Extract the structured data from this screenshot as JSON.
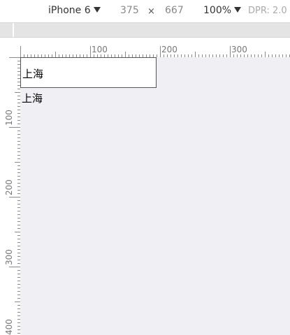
{
  "toolbar": {
    "device_name": "iPhone 6",
    "width_value": "375",
    "times_symbol": "×",
    "height_value": "667",
    "zoom_value": "100%",
    "dpr_label": "DPR: 2.0"
  },
  "ruler": {
    "horizontal_labels": [
      "100",
      "200",
      "300"
    ],
    "vertical_labels": [
      "100",
      "200",
      "300",
      "400"
    ]
  },
  "viewport": {
    "select_value": "上海",
    "text_value": "上海"
  },
  "colors": {
    "viewport_bg": "#efeff4",
    "media_bar": "#e4e4e4"
  }
}
